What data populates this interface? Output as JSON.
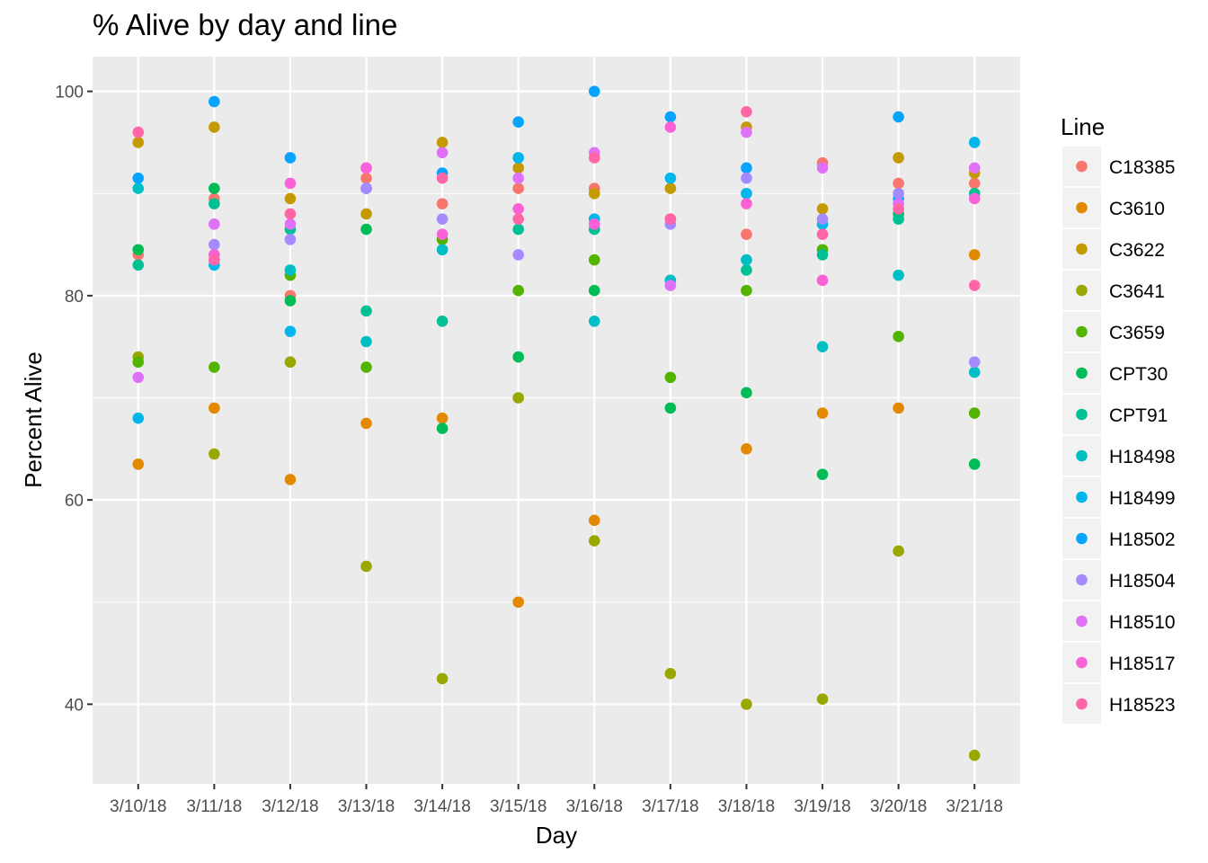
{
  "chart_data": {
    "type": "scatter",
    "title": "% Alive by day and line",
    "xlabel": "Day",
    "ylabel": "Percent Alive",
    "categories": [
      "3/10/18",
      "3/11/18",
      "3/12/18",
      "3/13/18",
      "3/14/18",
      "3/15/18",
      "3/16/18",
      "3/17/18",
      "3/18/18",
      "3/19/18",
      "3/20/18",
      "3/21/18"
    ],
    "yticks": [
      40,
      60,
      80,
      100
    ],
    "ylim": [
      32.2,
      103.4
    ],
    "grid": true,
    "legend_title": "Line",
    "legend_position": "right",
    "series": [
      {
        "name": "C18385",
        "color": "#F8766D",
        "values": [
          84,
          89.5,
          80,
          91.5,
          89,
          90.5,
          90.5,
          87.5,
          86,
          93,
          91,
          91
        ]
      },
      {
        "name": "C3610",
        "color": "#E38900",
        "values": [
          63.5,
          69,
          62,
          67.5,
          68,
          50,
          58,
          null,
          65,
          68.5,
          69,
          84
        ]
      },
      {
        "name": "C3622",
        "color": "#C49A00",
        "values": [
          95,
          96.5,
          89.5,
          88,
          95,
          92.5,
          90,
          90.5,
          96.5,
          88.5,
          93.5,
          92
        ]
      },
      {
        "name": "C3641",
        "color": "#99A800",
        "values": [
          74,
          64.5,
          73.5,
          53.5,
          42.5,
          70,
          56,
          43,
          40,
          40.5,
          55,
          35
        ]
      },
      {
        "name": "C3659",
        "color": "#53B400",
        "values": [
          73.5,
          73,
          82,
          73,
          85.5,
          80.5,
          83.5,
          72,
          80.5,
          84.5,
          76,
          68.5
        ]
      },
      {
        "name": "CPT30",
        "color": "#00BC56",
        "values": [
          84.5,
          90.5,
          79.5,
          86.5,
          67,
          74,
          80.5,
          69,
          70.5,
          62.5,
          88,
          63.5
        ]
      },
      {
        "name": "CPT91",
        "color": "#00C094",
        "values": [
          83,
          89,
          86.5,
          78.5,
          77.5,
          86.5,
          86.5,
          81.5,
          82.5,
          84,
          87.5,
          90
        ]
      },
      {
        "name": "H18498",
        "color": "#00BFC4",
        "values": [
          90.5,
          84,
          82.5,
          75.5,
          84.5,
          null,
          77.5,
          81.5,
          83.5,
          75,
          82,
          72.5
        ]
      },
      {
        "name": "H18499",
        "color": "#00B6EB",
        "values": [
          68,
          83,
          76.5,
          null,
          null,
          93.5,
          87.5,
          91.5,
          90,
          87,
          89.5,
          95
        ]
      },
      {
        "name": "H18502",
        "color": "#06A4FF",
        "values": [
          91.5,
          99,
          93.5,
          90.5,
          92,
          97,
          100,
          97.5,
          92.5,
          null,
          97.5,
          null
        ]
      },
      {
        "name": "H18504",
        "color": "#A58AFF",
        "values": [
          null,
          85,
          85.5,
          90.5,
          87.5,
          84,
          null,
          87,
          91.5,
          87.5,
          90,
          73.5
        ]
      },
      {
        "name": "H18510",
        "color": "#DF70F8",
        "values": [
          72,
          87,
          87,
          92.5,
          94,
          91.5,
          94,
          81,
          96,
          92.5,
          89,
          92.5
        ]
      },
      {
        "name": "H18517",
        "color": "#FB61D7",
        "values": [
          null,
          84,
          91,
          92.5,
          86,
          88.5,
          87,
          96.5,
          89,
          81.5,
          null,
          89.5
        ]
      },
      {
        "name": "H18523",
        "color": "#FF66A8",
        "values": [
          96,
          83.5,
          88,
          null,
          91.5,
          87.5,
          93.5,
          87.5,
          98,
          86,
          88.5,
          81
        ]
      }
    ]
  }
}
